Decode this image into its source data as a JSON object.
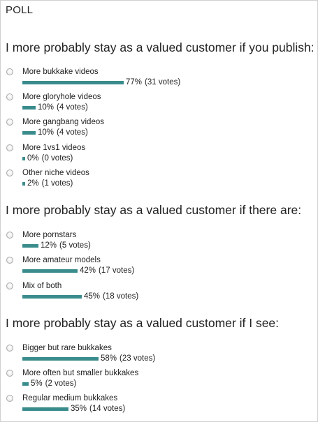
{
  "widget": {
    "title": "POLL"
  },
  "bar_color": "#3a8c8c",
  "polls": [
    {
      "question": "I more probably stay as a valued customer if you publish:",
      "options": [
        {
          "label": "More bukkake videos",
          "percent": "77%",
          "votes": "(31 votes)",
          "fraction": 0.77
        },
        {
          "label": "More gloryhole videos",
          "percent": "10%",
          "votes": "(4 votes)",
          "fraction": 0.1
        },
        {
          "label": "More gangbang videos",
          "percent": "10%",
          "votes": "(4 votes)",
          "fraction": 0.1
        },
        {
          "label": "More 1vs1 videos",
          "percent": "0%",
          "votes": "(0 votes)",
          "fraction": 0.0
        },
        {
          "label": "Other niche videos",
          "percent": "2%",
          "votes": "(1 votes)",
          "fraction": 0.02
        }
      ]
    },
    {
      "question": "I more probably stay as a valued customer if there are:",
      "options": [
        {
          "label": "More pornstars",
          "percent": "12%",
          "votes": "(5 votes)",
          "fraction": 0.12
        },
        {
          "label": "More amateur models",
          "percent": "42%",
          "votes": "(17 votes)",
          "fraction": 0.42
        },
        {
          "label": "Mix of both",
          "percent": "45%",
          "votes": "(18 votes)",
          "fraction": 0.45
        }
      ]
    },
    {
      "question": "I more probably stay as a valued customer if I see:",
      "options": [
        {
          "label": "Bigger but rare bukkakes",
          "percent": "58%",
          "votes": "(23 votes)",
          "fraction": 0.58
        },
        {
          "label": "More often but smaller bukkakes",
          "percent": "5%",
          "votes": "(2 votes)",
          "fraction": 0.05
        },
        {
          "label": "Regular medium bukkakes",
          "percent": "35%",
          "votes": "(14 votes)",
          "fraction": 0.35
        }
      ]
    }
  ]
}
